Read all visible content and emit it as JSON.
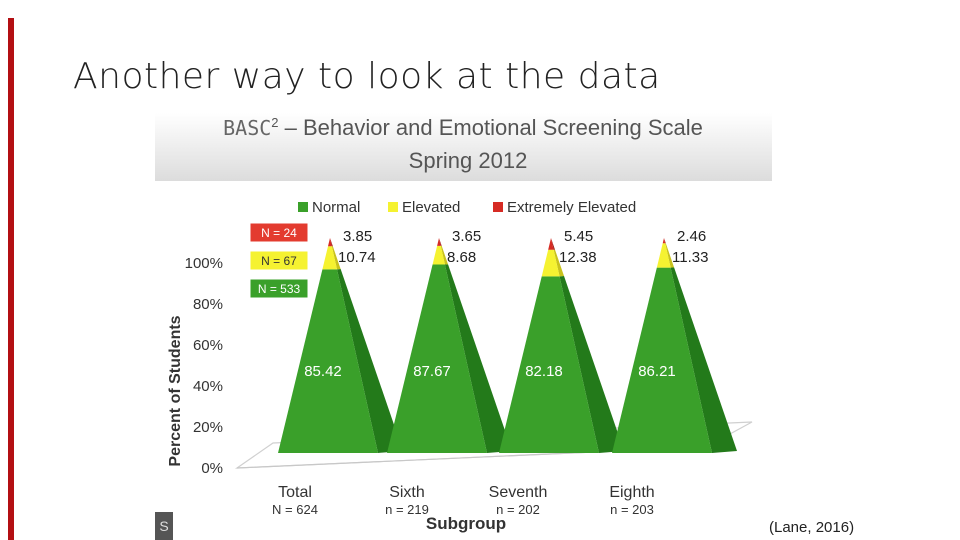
{
  "slide": {
    "title": "Another way to look at the data",
    "citation": "(Lane, 2016)",
    "corner_label": "S"
  },
  "colors": {
    "accent_bar": "#b30f13",
    "normal": "#3aa02a",
    "normal_dark": "#237a1a",
    "elevated": "#f5f231",
    "extremely_elevated": "#d62b24"
  },
  "chart_data": {
    "type": "bar",
    "style": "3d-pyramid-stacked-100",
    "title": "BASC",
    "title_superscript": "2",
    "title_rest": " – Behavior and Emotional Screening Scale",
    "subtitle": "Spring 2012",
    "xlabel": "Subgroup",
    "ylabel": "Percent of Students",
    "ylim": [
      0,
      100
    ],
    "yticks": [
      "0%",
      "20%",
      "40%",
      "60%",
      "80%",
      "100%"
    ],
    "legend_position": "top",
    "categories": [
      "Total",
      "Sixth",
      "Seventh",
      "Eighth"
    ],
    "category_counts": [
      "N = 624",
      "n = 219",
      "n = 202",
      "n = 203"
    ],
    "series": [
      {
        "name": "Normal",
        "values": [
          85.42,
          87.67,
          82.18,
          86.21
        ],
        "labels": [
          "85.42",
          "87.67",
          "82.18",
          "86.21"
        ]
      },
      {
        "name": "Elevated",
        "values": [
          10.74,
          8.68,
          12.38,
          11.33
        ],
        "labels": [
          "10.74",
          "8.68",
          "12.38",
          "11.33"
        ]
      },
      {
        "name": "Extremely Elevated",
        "values": [
          3.85,
          3.65,
          5.45,
          2.46
        ],
        "labels": [
          "3.85",
          "3.65",
          "5.45",
          "2.46"
        ]
      }
    ],
    "count_badges": [
      {
        "label": "N = 24",
        "series": "Extremely Elevated"
      },
      {
        "label": "N = 67",
        "series": "Elevated"
      },
      {
        "label": "N = 533",
        "series": "Normal"
      }
    ]
  }
}
